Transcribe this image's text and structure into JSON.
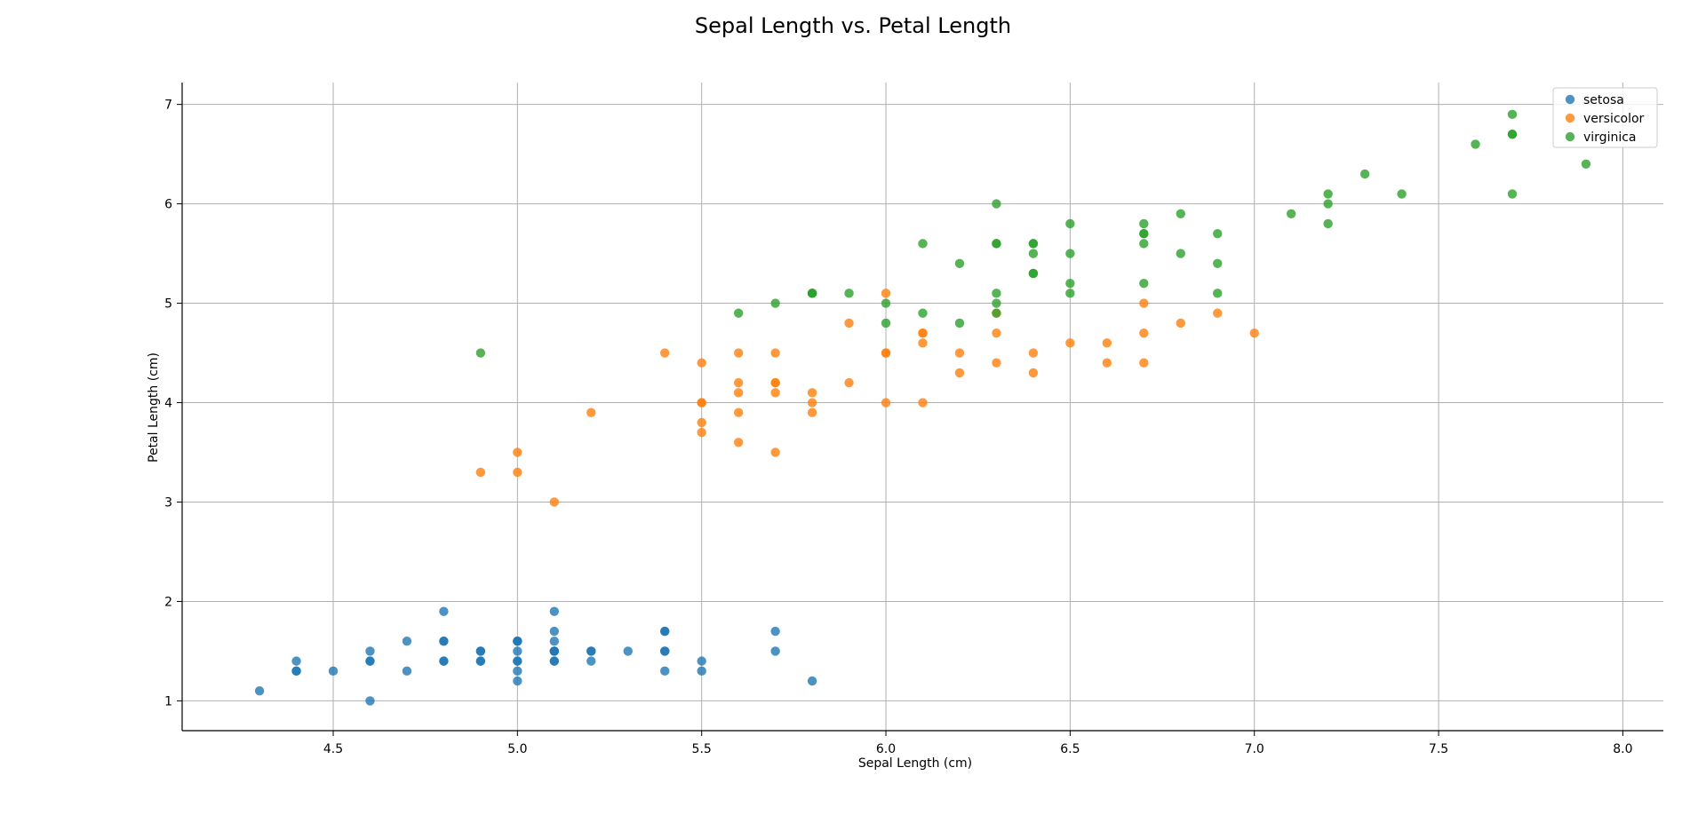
{
  "chart_data": {
    "type": "scatter",
    "title": "Sepal Length vs. Petal Length",
    "xlabel": "Sepal Length (cm)",
    "ylabel": "Petal Length (cm)",
    "xlim": [
      4.09,
      8.11
    ],
    "ylim": [
      0.7,
      7.22
    ],
    "xticks": [
      4.5,
      5.0,
      5.5,
      6.0,
      6.5,
      7.0,
      7.5,
      8.0
    ],
    "xtick_labels": [
      "4.5",
      "5.0",
      "5.5",
      "6.0",
      "6.5",
      "7.0",
      "7.5",
      "8.0"
    ],
    "yticks": [
      1,
      2,
      3,
      4,
      5,
      6,
      7
    ],
    "ytick_labels": [
      "1",
      "2",
      "3",
      "4",
      "5",
      "6",
      "7"
    ],
    "grid": true,
    "legend_position": "top-right",
    "series": [
      {
        "name": "setosa",
        "color": "#1f77b4",
        "points": [
          [
            5.1,
            1.4
          ],
          [
            4.9,
            1.4
          ],
          [
            4.7,
            1.3
          ],
          [
            4.6,
            1.5
          ],
          [
            5.0,
            1.4
          ],
          [
            5.4,
            1.7
          ],
          [
            4.6,
            1.4
          ],
          [
            5.0,
            1.5
          ],
          [
            4.4,
            1.4
          ],
          [
            4.9,
            1.5
          ],
          [
            5.4,
            1.5
          ],
          [
            4.8,
            1.6
          ],
          [
            4.8,
            1.4
          ],
          [
            4.3,
            1.1
          ],
          [
            5.8,
            1.2
          ],
          [
            5.7,
            1.5
          ],
          [
            5.4,
            1.3
          ],
          [
            5.1,
            1.4
          ],
          [
            5.7,
            1.7
          ],
          [
            5.1,
            1.5
          ],
          [
            5.4,
            1.7
          ],
          [
            5.1,
            1.5
          ],
          [
            4.6,
            1.0
          ],
          [
            5.1,
            1.7
          ],
          [
            4.8,
            1.9
          ],
          [
            5.0,
            1.6
          ],
          [
            5.0,
            1.6
          ],
          [
            5.2,
            1.5
          ],
          [
            5.2,
            1.4
          ],
          [
            4.7,
            1.6
          ],
          [
            4.8,
            1.6
          ],
          [
            5.4,
            1.5
          ],
          [
            5.2,
            1.5
          ],
          [
            5.5,
            1.4
          ],
          [
            4.9,
            1.5
          ],
          [
            5.0,
            1.2
          ],
          [
            5.5,
            1.3
          ],
          [
            4.9,
            1.4
          ],
          [
            4.4,
            1.3
          ],
          [
            5.1,
            1.5
          ],
          [
            5.0,
            1.3
          ],
          [
            4.5,
            1.3
          ],
          [
            4.4,
            1.3
          ],
          [
            5.0,
            1.6
          ],
          [
            5.1,
            1.9
          ],
          [
            4.8,
            1.4
          ],
          [
            5.1,
            1.6
          ],
          [
            4.6,
            1.4
          ],
          [
            5.3,
            1.5
          ],
          [
            5.0,
            1.4
          ]
        ]
      },
      {
        "name": "versicolor",
        "color": "#ff7f0e",
        "points": [
          [
            7.0,
            4.7
          ],
          [
            6.4,
            4.5
          ],
          [
            6.9,
            4.9
          ],
          [
            5.5,
            4.0
          ],
          [
            6.5,
            4.6
          ],
          [
            5.7,
            4.5
          ],
          [
            6.3,
            4.7
          ],
          [
            4.9,
            3.3
          ],
          [
            6.6,
            4.6
          ],
          [
            5.2,
            3.9
          ],
          [
            5.0,
            3.5
          ],
          [
            5.9,
            4.2
          ],
          [
            6.0,
            4.0
          ],
          [
            6.1,
            4.7
          ],
          [
            5.6,
            3.6
          ],
          [
            6.7,
            4.4
          ],
          [
            5.6,
            4.5
          ],
          [
            5.8,
            4.1
          ],
          [
            6.2,
            4.5
          ],
          [
            5.6,
            3.9
          ],
          [
            5.9,
            4.8
          ],
          [
            6.1,
            4.0
          ],
          [
            6.3,
            4.9
          ],
          [
            6.1,
            4.7
          ],
          [
            6.4,
            4.3
          ],
          [
            6.6,
            4.4
          ],
          [
            6.8,
            4.8
          ],
          [
            6.7,
            5.0
          ],
          [
            6.0,
            4.5
          ],
          [
            5.7,
            3.5
          ],
          [
            5.5,
            3.8
          ],
          [
            5.5,
            3.7
          ],
          [
            5.8,
            3.9
          ],
          [
            6.0,
            5.1
          ],
          [
            5.4,
            4.5
          ],
          [
            6.0,
            4.5
          ],
          [
            6.7,
            4.7
          ],
          [
            6.3,
            4.4
          ],
          [
            5.6,
            4.1
          ],
          [
            5.5,
            4.0
          ],
          [
            5.5,
            4.4
          ],
          [
            6.1,
            4.6
          ],
          [
            5.8,
            4.0
          ],
          [
            5.0,
            3.3
          ],
          [
            5.6,
            4.2
          ],
          [
            5.7,
            4.2
          ],
          [
            5.7,
            4.2
          ],
          [
            6.2,
            4.3
          ],
          [
            5.1,
            3.0
          ],
          [
            5.7,
            4.1
          ]
        ]
      },
      {
        "name": "virginica",
        "color": "#2ca02c",
        "points": [
          [
            6.3,
            6.0
          ],
          [
            5.8,
            5.1
          ],
          [
            7.1,
            5.9
          ],
          [
            6.3,
            5.6
          ],
          [
            6.5,
            5.8
          ],
          [
            7.6,
            6.6
          ],
          [
            4.9,
            4.5
          ],
          [
            7.3,
            6.3
          ],
          [
            6.7,
            5.8
          ],
          [
            7.2,
            6.1
          ],
          [
            6.5,
            5.1
          ],
          [
            6.4,
            5.3
          ],
          [
            6.8,
            5.5
          ],
          [
            5.7,
            5.0
          ],
          [
            5.8,
            5.1
          ],
          [
            6.4,
            5.3
          ],
          [
            6.5,
            5.5
          ],
          [
            7.7,
            6.7
          ],
          [
            7.7,
            6.9
          ],
          [
            6.0,
            5.0
          ],
          [
            6.9,
            5.7
          ],
          [
            5.6,
            4.9
          ],
          [
            7.7,
            6.7
          ],
          [
            6.3,
            4.9
          ],
          [
            6.7,
            5.7
          ],
          [
            7.2,
            6.0
          ],
          [
            6.2,
            4.8
          ],
          [
            6.1,
            4.9
          ],
          [
            6.4,
            5.6
          ],
          [
            7.2,
            5.8
          ],
          [
            7.4,
            6.1
          ],
          [
            7.9,
            6.4
          ],
          [
            6.4,
            5.6
          ],
          [
            6.3,
            5.1
          ],
          [
            6.1,
            5.6
          ],
          [
            7.7,
            6.1
          ],
          [
            6.3,
            5.6
          ],
          [
            6.4,
            5.5
          ],
          [
            6.0,
            4.8
          ],
          [
            6.9,
            5.4
          ],
          [
            6.7,
            5.6
          ],
          [
            6.9,
            5.1
          ],
          [
            5.8,
            5.1
          ],
          [
            6.8,
            5.9
          ],
          [
            6.7,
            5.7
          ],
          [
            6.7,
            5.2
          ],
          [
            6.3,
            5.0
          ],
          [
            6.5,
            5.2
          ],
          [
            6.2,
            5.4
          ],
          [
            5.9,
            5.1
          ]
        ]
      }
    ]
  }
}
